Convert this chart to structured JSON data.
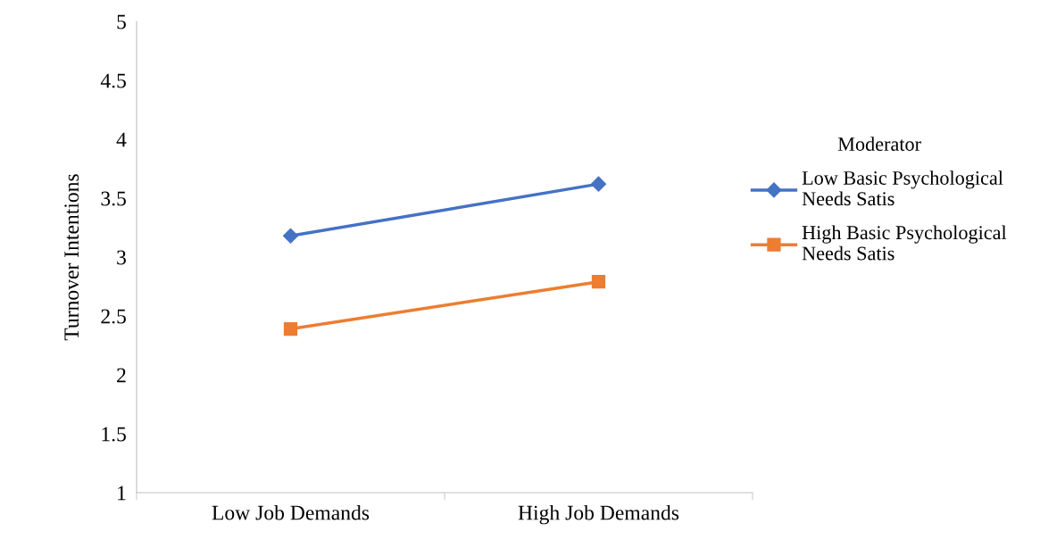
{
  "chart_data": {
    "type": "line",
    "ylabel": "Turnover Intentions",
    "legend_title": "Moderator",
    "legend": "right",
    "categories": [
      "Low Job Demands",
      "High Job Demands"
    ],
    "series": [
      {
        "name": "Low Basic Psychological Needs Satis",
        "color": "#4472c4",
        "marker": "diamond",
        "values": [
          3.18,
          3.62
        ]
      },
      {
        "name": "High Basic Psychological Needs Satis",
        "color": "#ed7d31",
        "marker": "square",
        "values": [
          2.39,
          2.79
        ]
      }
    ],
    "ylim": [
      1,
      5
    ],
    "yticks": [
      1,
      1.5,
      2,
      2.5,
      3,
      3.5,
      4,
      4.5,
      5
    ],
    "grid": false
  }
}
